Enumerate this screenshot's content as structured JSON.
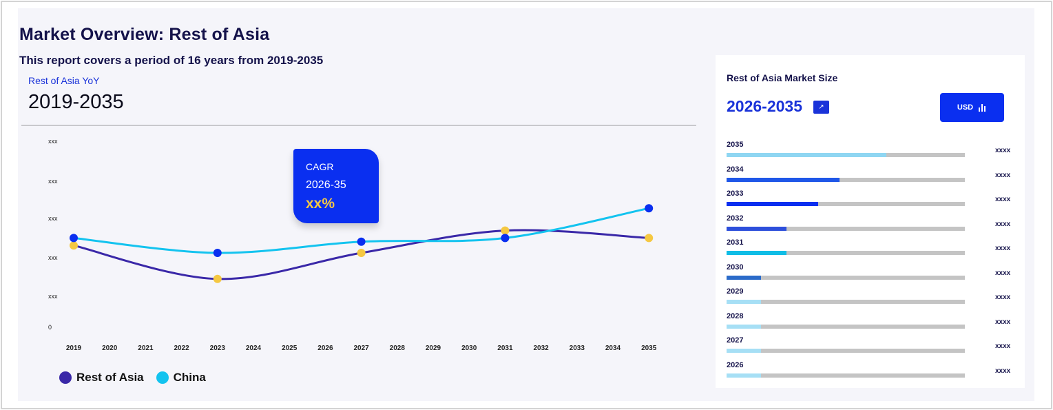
{
  "header": {
    "title": "Market Overview: Rest of Asia",
    "subtitle": "This report covers a period of 16 years from 2019-2035",
    "yoy_label": "Rest of Asia YoY",
    "yoy_range": "2019-2035"
  },
  "cagr": {
    "label": "CAGR",
    "period": "2026-35",
    "value": "xx%"
  },
  "chart_data": {
    "type": "line",
    "title": "",
    "xlabel": "",
    "ylabel": "",
    "categories": [
      "2019",
      "2020",
      "2021",
      "2022",
      "2023",
      "2024",
      "2025",
      "2026",
      "2027",
      "2028",
      "2029",
      "2030",
      "2031",
      "2032",
      "2033",
      "2034",
      "2035"
    ],
    "y_tick_labels": [
      "0",
      "xxx",
      "xxx",
      "xxx",
      "xxx",
      "xxx"
    ],
    "ylim": [
      0,
      5
    ],
    "grid": false,
    "legend_position": "bottom-left",
    "series": [
      {
        "name": "Rest of  Asia",
        "color": "#3a28a8",
        "x": [
          "2019",
          "2023",
          "2027",
          "2031",
          "2035"
        ],
        "values": [
          2.2,
          1.3,
          2.0,
          2.6,
          2.4
        ],
        "marker_color": "#f5c842"
      },
      {
        "name": "China",
        "color": "#13c3ef",
        "x": [
          "2019",
          "2023",
          "2027",
          "2031",
          "2035"
        ],
        "values": [
          2.4,
          2.0,
          2.3,
          2.4,
          3.2
        ],
        "marker_color": "#0a2ff0"
      }
    ]
  },
  "market_size": {
    "title": "Rest of Asia Market Size",
    "range": "2026-2035",
    "currency_button": "USD",
    "rows": [
      {
        "year": "2035",
        "value": "xxxx",
        "fraction": 0.67,
        "color": "#8fd6f2"
      },
      {
        "year": "2034",
        "value": "xxxx",
        "fraction": 0.475,
        "color": "#1f57e8"
      },
      {
        "year": "2033",
        "value": "xxxx",
        "fraction": 0.385,
        "color": "#0a2ff0"
      },
      {
        "year": "2032",
        "value": "xxxx",
        "fraction": 0.25,
        "color": "#2d4fdb"
      },
      {
        "year": "2031",
        "value": "xxxx",
        "fraction": 0.25,
        "color": "#0fbde6"
      },
      {
        "year": "2030",
        "value": "xxxx",
        "fraction": 0.145,
        "color": "#2b6bc9"
      },
      {
        "year": "2029",
        "value": "xxxx",
        "fraction": 0.145,
        "color": "#a6dff5"
      },
      {
        "year": "2028",
        "value": "xxxx",
        "fraction": 0.145,
        "color": "#a6dff5"
      },
      {
        "year": "2027",
        "value": "xxxx",
        "fraction": 0.145,
        "color": "#a6dff5"
      },
      {
        "year": "2026",
        "value": "xxxx",
        "fraction": 0.145,
        "color": "#a6dff5"
      }
    ]
  }
}
